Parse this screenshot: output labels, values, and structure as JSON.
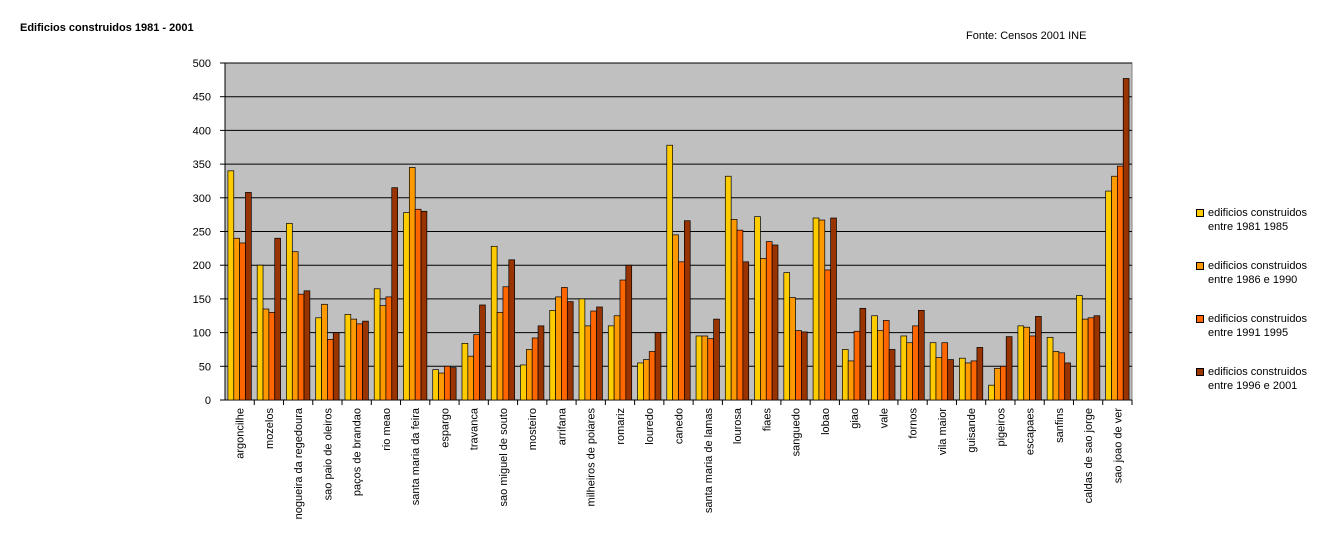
{
  "chart_data": {
    "type": "bar",
    "title": "Edificios construidos 1981 - 2001",
    "annotation": "Fonte: Censos 2001 INE",
    "categories": [
      "argoncilhe",
      "mozelos",
      "nogueira da regedoura",
      "sao paio de oleiros",
      "paços de brandao",
      "rio meao",
      "santa maria da feira",
      "espargo",
      "travanca",
      "sao miguel de souto",
      "mosteiro",
      "arrifana",
      "milheiros de poiares",
      "romariz",
      "louredo",
      "canedo",
      "santa maria de lamas",
      "lourosa",
      "fiaes",
      "sanguedo",
      "lobao",
      "giao",
      "vale",
      "fornos",
      "vila maior",
      "guisande",
      "pigeiros",
      "escapaes",
      "sanfins",
      "caldas de sao jorge",
      "sao joao de ver"
    ],
    "series": [
      {
        "name": "edificios construidos entre 1981 1985",
        "color": "#ffcc00",
        "values": [
          340,
          200,
          262,
          122,
          127,
          165,
          278,
          45,
          84,
          228,
          52,
          133,
          150,
          110,
          55,
          378,
          95,
          332,
          272,
          189,
          270,
          75,
          125,
          95,
          85,
          62,
          22,
          110,
          93,
          155,
          310
        ]
      },
      {
        "name": "edificios construidos entre 1986 e 1990",
        "color": "#ff9900",
        "values": [
          240,
          135,
          220,
          142,
          120,
          140,
          345,
          40,
          65,
          130,
          75,
          153,
          110,
          125,
          60,
          245,
          95,
          268,
          210,
          152,
          267,
          58,
          103,
          85,
          63,
          55,
          47,
          108,
          72,
          120,
          332
        ]
      },
      {
        "name": "edificios construidos entre 1991 1995",
        "color": "#ff6600",
        "values": [
          233,
          130,
          157,
          90,
          113,
          153,
          283,
          50,
          97,
          168,
          92,
          167,
          132,
          178,
          72,
          205,
          91,
          252,
          235,
          103,
          193,
          102,
          118,
          110,
          85,
          58,
          50,
          95,
          70,
          122,
          347
        ]
      },
      {
        "name": "edificios construidos entre 1996 e 2001",
        "color": "#993300",
        "values": [
          308,
          240,
          162,
          100,
          117,
          315,
          280,
          48,
          141,
          208,
          110,
          146,
          138,
          200,
          100,
          266,
          120,
          205,
          230,
          101,
          270,
          136,
          75,
          133,
          60,
          78,
          94,
          124,
          55,
          125,
          477
        ]
      }
    ],
    "ylim": [
      0,
      500
    ],
    "yticks": [
      0,
      50,
      100,
      150,
      200,
      250,
      300,
      350,
      400,
      450,
      500
    ],
    "grid": true,
    "legend": "right",
    "background": "#c0c0c0"
  }
}
